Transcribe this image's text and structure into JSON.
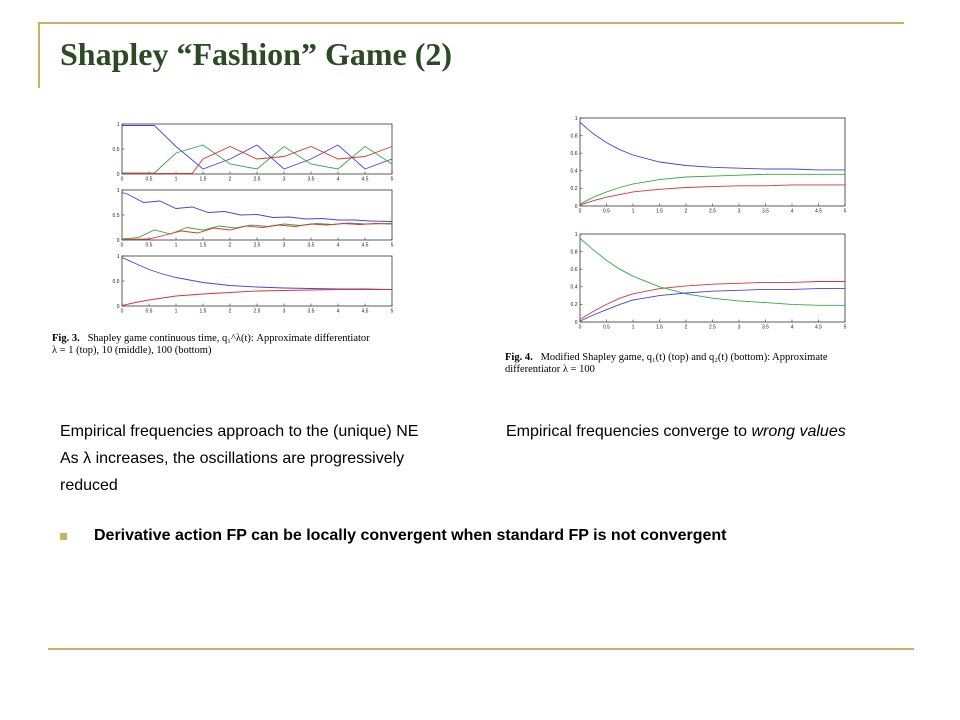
{
  "slide": {
    "title": "Shapley “Fashion” Game (2)",
    "accent_color": "#c8b45c",
    "title_color": "#2c4a24"
  },
  "figure3": {
    "caption_label": "Fig. 3.",
    "caption_line1": "Shapley game continuous time,",
    "caption_symbol": "q₁^λ(t)",
    "caption_line1b": ": Approximate differentiator",
    "caption_line2": "λ = 1 (top), 10 (middle), 100 (bottom)"
  },
  "figure4": {
    "caption_label": "Fig. 4.",
    "caption_line1": "Modified Shapley game, q₁(t) (top) and q₂(t) (bottom): Approximate",
    "caption_line2": "differentiator λ = 100"
  },
  "text": {
    "left_line1": "Empirical frequencies approach to the (unique) NE",
    "left_line2": "As λ increases, the oscillations are progressively",
    "left_line3": "reduced",
    "right_prefix": "Empirical frequencies converge to ",
    "right_italic": "wrong values",
    "bullet": "Derivative action FP can be locally convergent when standard FP is not convergent"
  },
  "chart_data": [
    {
      "type": "line",
      "id": "fig3-top",
      "xlim": [
        0,
        5
      ],
      "ylim": [
        0,
        1
      ],
      "x_ticks": [
        "0",
        "0.5",
        "1",
        "1.5",
        "2",
        "2.5",
        "3",
        "3.5",
        "4",
        "4.5",
        "5"
      ],
      "y_ticks": [
        "0",
        "0.5",
        "1"
      ],
      "series": [
        {
          "color": "#4444dd",
          "x": [
            0,
            0.5,
            0.6,
            1.0,
            1.5,
            2.0,
            2.5,
            3.0,
            3.5,
            4.0,
            4.5,
            5.0
          ],
          "y": [
            0.97,
            0.97,
            0.97,
            0.55,
            0.1,
            0.3,
            0.58,
            0.1,
            0.3,
            0.58,
            0.1,
            0.3
          ]
        },
        {
          "color": "#33aa44",
          "x": [
            0,
            0.5,
            0.6,
            1.0,
            1.5,
            2.0,
            2.5,
            3.0,
            3.5,
            4.0,
            4.5,
            5.0
          ],
          "y": [
            0.02,
            0.02,
            0.02,
            0.42,
            0.58,
            0.2,
            0.1,
            0.55,
            0.2,
            0.1,
            0.55,
            0.2
          ]
        },
        {
          "color": "#dd3333",
          "x": [
            0,
            0.5,
            1.0,
            1.3,
            1.5,
            2.0,
            2.5,
            3.0,
            3.5,
            4.0,
            4.5,
            5.0
          ],
          "y": [
            0.01,
            0.01,
            0.01,
            0.01,
            0.3,
            0.55,
            0.3,
            0.35,
            0.55,
            0.3,
            0.35,
            0.55
          ]
        }
      ]
    },
    {
      "type": "line",
      "id": "fig3-middle",
      "xlim": [
        0,
        5
      ],
      "ylim": [
        0,
        1
      ],
      "x_ticks": [
        "0",
        "0.5",
        "1",
        "1.5",
        "2",
        "2.5",
        "3",
        "3.5",
        "4",
        "4.5",
        "5"
      ],
      "y_ticks": [
        "0",
        "0.5",
        "1"
      ],
      "series": [
        {
          "color": "#4444dd",
          "x": [
            0,
            0.1,
            0.4,
            0.7,
            1.0,
            1.3,
            1.6,
            1.9,
            2.2,
            2.5,
            2.8,
            3.1,
            3.4,
            3.7,
            4.0,
            4.3,
            4.6,
            5.0
          ],
          "y": [
            0.95,
            0.92,
            0.75,
            0.78,
            0.63,
            0.66,
            0.55,
            0.57,
            0.5,
            0.51,
            0.45,
            0.46,
            0.42,
            0.43,
            0.4,
            0.4,
            0.38,
            0.37
          ]
        },
        {
          "color": "#33aa44",
          "x": [
            0,
            0.3,
            0.6,
            0.9,
            1.2,
            1.5,
            1.8,
            2.1,
            2.4,
            2.7,
            3.0,
            3.3,
            3.6,
            3.9,
            4.2,
            4.5,
            5.0
          ],
          "y": [
            0.02,
            0.05,
            0.2,
            0.12,
            0.25,
            0.2,
            0.28,
            0.24,
            0.3,
            0.27,
            0.32,
            0.29,
            0.33,
            0.31,
            0.34,
            0.32,
            0.33
          ]
        },
        {
          "color": "#dd3333",
          "x": [
            0,
            0.5,
            0.8,
            1.1,
            1.4,
            1.7,
            2.0,
            2.3,
            2.6,
            2.9,
            3.2,
            3.5,
            3.8,
            4.1,
            4.4,
            4.7,
            5.0
          ],
          "y": [
            0.01,
            0.02,
            0.1,
            0.18,
            0.14,
            0.24,
            0.2,
            0.28,
            0.25,
            0.3,
            0.27,
            0.32,
            0.3,
            0.33,
            0.31,
            0.33,
            0.32
          ]
        }
      ]
    },
    {
      "type": "line",
      "id": "fig3-bottom",
      "xlim": [
        0,
        5
      ],
      "ylim": [
        0,
        1
      ],
      "x_ticks": [
        "0",
        "0.5",
        "1",
        "1.5",
        "2",
        "2.5",
        "3",
        "3.5",
        "4",
        "4.5",
        "5"
      ],
      "y_ticks": [
        "0",
        "0.5",
        "1"
      ],
      "series": [
        {
          "color": "#4444dd",
          "x": [
            0,
            0.25,
            0.5,
            0.75,
            1.0,
            1.5,
            2.0,
            2.5,
            3.0,
            3.5,
            4.0,
            4.5,
            5.0
          ],
          "y": [
            0.97,
            0.85,
            0.73,
            0.64,
            0.57,
            0.47,
            0.41,
            0.38,
            0.36,
            0.35,
            0.34,
            0.34,
            0.33
          ]
        },
        {
          "color": "#dd3333",
          "x": [
            0,
            0.25,
            0.5,
            0.75,
            1.0,
            1.5,
            2.0,
            2.5,
            3.0,
            3.5,
            4.0,
            4.5,
            5.0
          ],
          "y": [
            0.01,
            0.07,
            0.12,
            0.16,
            0.2,
            0.24,
            0.27,
            0.3,
            0.31,
            0.32,
            0.33,
            0.33,
            0.33
          ]
        }
      ]
    },
    {
      "type": "line",
      "id": "fig4-top",
      "xlim": [
        0,
        5
      ],
      "ylim": [
        0,
        1
      ],
      "x_ticks": [
        "0",
        "0.5",
        "1",
        "1.5",
        "2",
        "2.5",
        "3",
        "3.5",
        "4",
        "4.5",
        "5"
      ],
      "y_ticks": [
        "0",
        "0.2",
        "0.4",
        "0.6",
        "0.8",
        "1"
      ],
      "series": [
        {
          "color": "#4444dd",
          "x": [
            0,
            0.25,
            0.5,
            0.75,
            1.0,
            1.5,
            2.0,
            2.5,
            3.0,
            3.5,
            4.0,
            4.5,
            5.0
          ],
          "y": [
            0.95,
            0.82,
            0.72,
            0.64,
            0.58,
            0.5,
            0.46,
            0.44,
            0.43,
            0.42,
            0.42,
            0.41,
            0.41
          ]
        },
        {
          "color": "#33aa44",
          "x": [
            0,
            0.25,
            0.5,
            0.75,
            1.0,
            1.5,
            2.0,
            2.5,
            3.0,
            3.5,
            4.0,
            4.5,
            5.0
          ],
          "y": [
            0.02,
            0.1,
            0.16,
            0.21,
            0.25,
            0.3,
            0.33,
            0.34,
            0.35,
            0.36,
            0.36,
            0.36,
            0.36
          ]
        },
        {
          "color": "#dd3333",
          "x": [
            0,
            0.25,
            0.5,
            0.75,
            1.0,
            1.5,
            2.0,
            2.5,
            3.0,
            3.5,
            4.0,
            4.5,
            5.0
          ],
          "y": [
            0.01,
            0.06,
            0.1,
            0.13,
            0.16,
            0.19,
            0.21,
            0.22,
            0.23,
            0.23,
            0.24,
            0.24,
            0.24
          ]
        }
      ]
    },
    {
      "type": "line",
      "id": "fig4-bottom",
      "xlim": [
        0,
        5
      ],
      "ylim": [
        0,
        1
      ],
      "x_ticks": [
        "0",
        "0.5",
        "1",
        "1.5",
        "2",
        "2.5",
        "3",
        "3.5",
        "4",
        "4.5",
        "5"
      ],
      "y_ticks": [
        "0",
        "0.2",
        "0.4",
        "0.6",
        "0.8",
        "1"
      ],
      "series": [
        {
          "color": "#33aa44",
          "x": [
            0,
            0.25,
            0.5,
            0.75,
            1.0,
            1.5,
            2.0,
            2.5,
            3.0,
            3.5,
            4.0,
            4.5,
            5.0
          ],
          "y": [
            0.95,
            0.82,
            0.7,
            0.6,
            0.52,
            0.4,
            0.32,
            0.27,
            0.24,
            0.22,
            0.2,
            0.19,
            0.19
          ]
        },
        {
          "color": "#dd3333",
          "x": [
            0,
            0.25,
            0.5,
            0.75,
            1.0,
            1.5,
            2.0,
            2.5,
            3.0,
            3.5,
            4.0,
            4.5,
            5.0
          ],
          "y": [
            0.03,
            0.12,
            0.2,
            0.27,
            0.32,
            0.38,
            0.41,
            0.43,
            0.44,
            0.45,
            0.45,
            0.46,
            0.46
          ]
        },
        {
          "color": "#4444dd",
          "x": [
            0,
            0.25,
            0.5,
            0.75,
            1.0,
            1.5,
            2.0,
            2.5,
            3.0,
            3.5,
            4.0,
            4.5,
            5.0
          ],
          "y": [
            0.01,
            0.08,
            0.14,
            0.2,
            0.25,
            0.3,
            0.33,
            0.35,
            0.36,
            0.37,
            0.37,
            0.38,
            0.38
          ]
        }
      ]
    }
  ]
}
